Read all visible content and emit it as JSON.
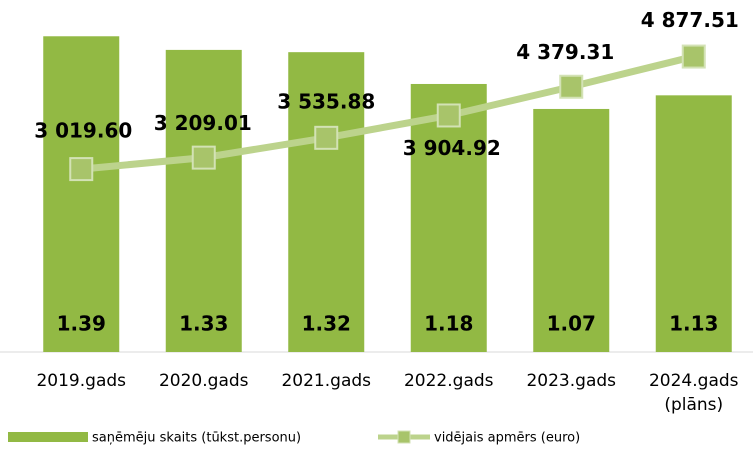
{
  "chart_data": {
    "type": "bar",
    "categories": [
      "2019.gads",
      "2020.gads",
      "2021.gads",
      "2022.gads",
      "2023.gads",
      "2024.gads (plāns)"
    ],
    "series": [
      {
        "name": "saņēmēju skaits (tūkst.personu)",
        "type": "bar",
        "color": "#92b944",
        "values": [
          1.39,
          1.33,
          1.32,
          1.18,
          1.07,
          1.13
        ]
      },
      {
        "name": "vidējais apmērs (euro)",
        "type": "line",
        "axis": "y2",
        "color": "#bcd38c",
        "marker_color": "#a8c46a",
        "values": [
          3019.6,
          3209.01,
          3535.88,
          3904.92,
          4379.31,
          4877.51
        ],
        "value_labels": [
          "3 019.60",
          "3 209.01",
          "3 535.88",
          "3 904.92",
          "4 379.31",
          "4 877.51"
        ]
      }
    ],
    "ylim": [
      0,
      1.4
    ],
    "y2lim": [
      0,
      5250
    ],
    "grid": false
  }
}
